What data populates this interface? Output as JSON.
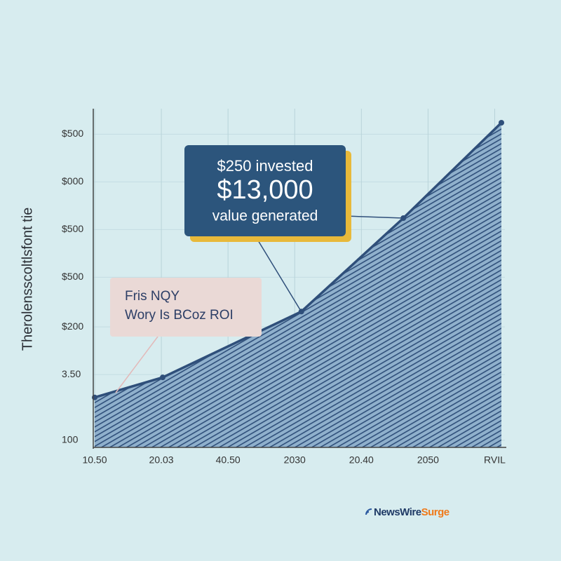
{
  "chart_data": {
    "type": "area",
    "y_label": "Therolensscoltlsfont tie",
    "x": [
      0,
      1.02,
      3.1,
      4.63,
      6.1
    ],
    "values": [
      145,
      166,
      235,
      333,
      433
    ],
    "color": "#2f4f7a",
    "xlim": [
      0,
      6.1
    ],
    "xticks": [
      {
        "value": 0,
        "label": "10.50"
      },
      {
        "value": 1,
        "label": "20.03"
      },
      {
        "value": 2,
        "label": "40.50"
      },
      {
        "value": 3,
        "label": "2030"
      },
      {
        "value": 4,
        "label": "20.40"
      },
      {
        "value": 5,
        "label": "2050"
      },
      {
        "value": 6,
        "label": "RVIL"
      }
    ],
    "ylim": [
      92.6,
      447.7
    ],
    "yticks": [
      100,
      {
        "value": 169,
        "label": "3.50"
      },
      {
        "value": 219,
        "label": "$200"
      },
      {
        "value": 271,
        "label": "$500"
      },
      {
        "value": 321,
        "label": "$500"
      },
      {
        "value": 371,
        "label": "$000"
      },
      {
        "value": 421,
        "label": "$500"
      }
    ],
    "grid": true,
    "annotations": [
      {
        "lines": [
          "$250 invested",
          "$13,000",
          "value generated"
        ]
      },
      {
        "lines": [
          "Fris NQY",
          "Wory Is BCoz ROI"
        ]
      }
    ],
    "watermark": [
      "NewsWire",
      "Surge"
    ]
  }
}
